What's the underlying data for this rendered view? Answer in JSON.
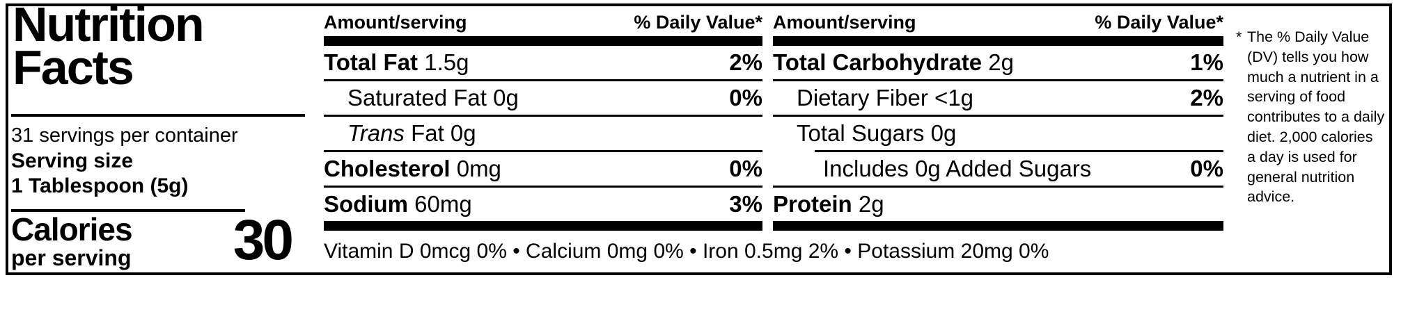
{
  "label": {
    "title_line1": "Nutrition",
    "title_line2": "Facts",
    "servings_per_container": "31 servings per container",
    "serving_size_label": "Serving size",
    "serving_size_value": "1 Tablespoon (5g)",
    "calories_label": "Calories",
    "calories_sub_label": "per serving",
    "calories_value": "30"
  },
  "columns": [
    {
      "header_left": "Amount/serving",
      "header_right": "% Daily Value*",
      "rows": [
        {
          "bold": "Total Fat",
          "rest": " 1.5g",
          "pct": "2%"
        },
        {
          "rest": "Saturated Fat 0g",
          "pct": "0%"
        },
        {
          "italic": "Trans",
          "rest": " Fat 0g",
          "pct": ""
        },
        {
          "bold": "Cholesterol",
          "rest": " 0mg",
          "pct": "0%"
        },
        {
          "bold": "Sodium",
          "rest": " 60mg",
          "pct": "3%"
        }
      ]
    },
    {
      "header_left": "Amount/serving",
      "header_right": "% Daily Value*",
      "rows": [
        {
          "bold": "Total Carbohydrate",
          "rest": " 2g",
          "pct": "1%"
        },
        {
          "rest": "Dietary Fiber <1g",
          "pct": "2%"
        },
        {
          "rest": "Total Sugars 0g",
          "pct": ""
        },
        {
          "rest": "Includes 0g Added Sugars",
          "pct": "0%"
        },
        {
          "bold": "Protein",
          "rest": " 2g",
          "pct": ""
        }
      ]
    }
  ],
  "micronutrients": "Vitamin D 0mcg 0% • Calcium 0mg 0% • Iron 0.5mg 2% • Potassium 20mg 0%",
  "footnote_marker": "*",
  "footnote_text": "The % Daily Value (DV) tells you how much a nutrient in a serving of food contributes to a daily diet. 2,000 calories a day is used for general nutrition advice.",
  "colors": {
    "ink": "#000000",
    "background": "#ffffff"
  }
}
